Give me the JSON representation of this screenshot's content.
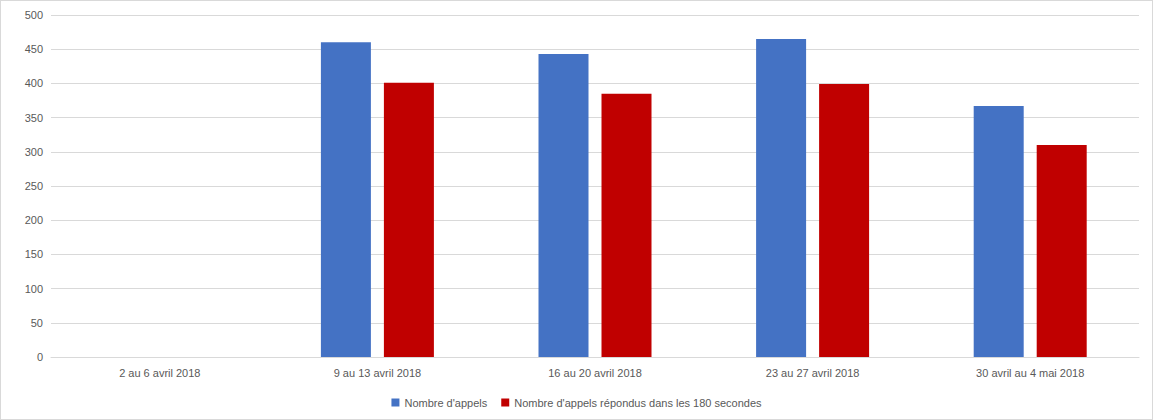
{
  "chart_data": {
    "type": "bar",
    "categories": [
      "2 au 6 avril 2018",
      "9 au 13 avril 2018",
      "16 au 20 avril 2018",
      "23 au 27 avril 2018",
      "30 avril au 4 mai 2018"
    ],
    "series": [
      {
        "name": "Nombre d'appels",
        "color": "#4472c4",
        "values": [
          null,
          460,
          443,
          465,
          367
        ]
      },
      {
        "name": "Nombre d'appels répondus dans les 180 secondes",
        "color": "#c00000",
        "values": [
          null,
          401,
          385,
          399,
          310
        ]
      }
    ],
    "ylim": [
      0,
      500
    ],
    "yticks": [
      0,
      50,
      100,
      150,
      200,
      250,
      300,
      350,
      400,
      450,
      500
    ],
    "grid": true,
    "legend": "bottom"
  }
}
